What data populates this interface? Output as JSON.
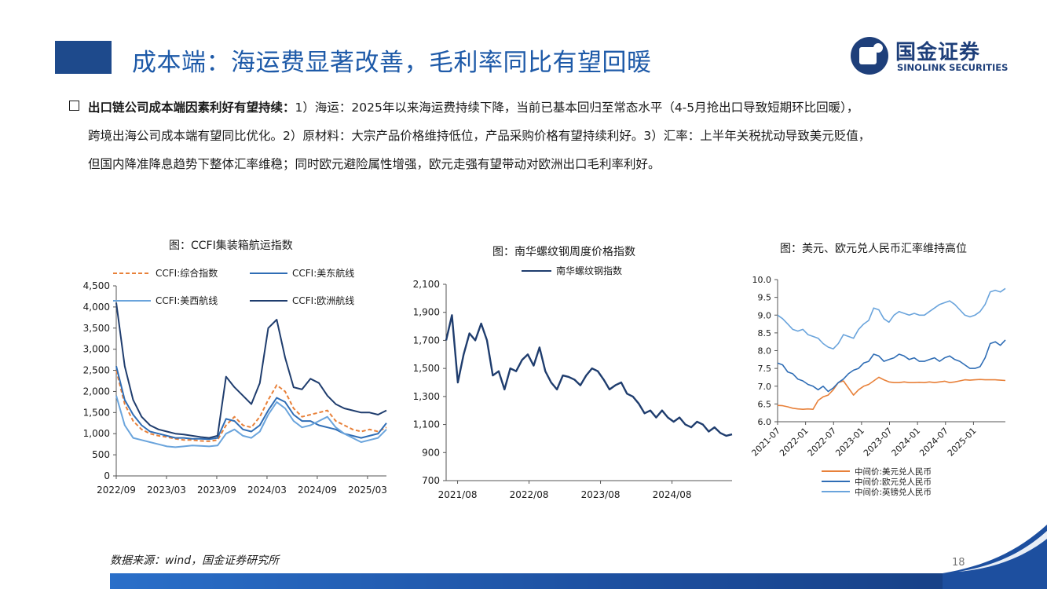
{
  "header": {
    "title": "成本端：海运费显著改善，毛利率同比有望回暖",
    "logo_cn": "国金证券",
    "logo_en": "SINOLINK SECURITIES"
  },
  "body": {
    "lead": "出口链公司成本端因素利好有望持续：",
    "lines": [
      "1）海运：2025年以来海运费持续下降，当前已基本回归至常态水平（4-5月抢出口导致短期环比回暖），",
      "跨境出海公司成本端有望同比优化。2）原材料：大宗产品价格维持低位，产品采购价格有望持续利好。3）汇率：上半年关税扰动导致美元贬值，",
      "但国内降准降息趋势下整体汇率维稳；同时欧元避险属性增强，欧元走强有望带动对欧洲出口毛利率利好。"
    ]
  },
  "colors": {
    "title_blue": "#1e5aa8",
    "logo_navy": "#1e3f7a",
    "orange": "#e8813a",
    "mid_blue": "#2f6db5",
    "light_blue": "#6aa4dc",
    "navy": "#1f3d6e"
  },
  "chart_data": [
    {
      "type": "line",
      "title": "图：CCFI集装箱航运指数",
      "x_ticks": [
        "2022/09",
        "2023/03",
        "2023/09",
        "2024/03",
        "2024/09",
        "2025/03"
      ],
      "x": [
        0,
        1,
        2,
        3,
        4,
        5,
        6,
        7,
        8,
        9,
        10,
        11,
        12,
        13,
        14,
        15,
        16,
        17,
        18,
        19,
        20,
        21,
        22,
        23,
        24,
        25,
        26,
        27,
        28,
        29,
        30,
        31,
        32
      ],
      "ylim": [
        0,
        4500
      ],
      "y_ticks": [
        0,
        500,
        1000,
        1500,
        2000,
        2500,
        3000,
        3500,
        4000,
        4500
      ],
      "legend_placement": "top",
      "series": [
        {
          "name": "CCFI:综合指数",
          "style": "dashed",
          "color": "#e8813a",
          "values": [
            2500,
            1700,
            1300,
            1100,
            1000,
            950,
            920,
            880,
            850,
            850,
            830,
            820,
            850,
            1200,
            1400,
            1200,
            1150,
            1400,
            1800,
            2150,
            2000,
            1600,
            1400,
            1450,
            1500,
            1550,
            1300,
            1200,
            1100,
            1050,
            1100,
            1050,
            1150
          ]
        },
        {
          "name": "CCFI:美东航线",
          "style": "solid",
          "color": "#2f6db5",
          "values": [
            2600,
            1800,
            1450,
            1200,
            1050,
            1000,
            950,
            900,
            900,
            880,
            880,
            870,
            900,
            1350,
            1300,
            1100,
            1050,
            1200,
            1550,
            1850,
            1750,
            1450,
            1300,
            1300,
            1200,
            1150,
            1100,
            1000,
            950,
            900,
            950,
            1000,
            1250
          ]
        },
        {
          "name": "CCFI:美西航线",
          "style": "solid",
          "color": "#6aa4dc",
          "values": [
            1900,
            1200,
            900,
            850,
            800,
            750,
            700,
            680,
            700,
            720,
            710,
            700,
            720,
            1000,
            1100,
            950,
            900,
            1050,
            1450,
            1750,
            1600,
            1300,
            1150,
            1200,
            1300,
            1400,
            1150,
            1000,
            900,
            800,
            850,
            900,
            1100
          ]
        },
        {
          "name": "CCFI:欧洲航线",
          "style": "solid",
          "color": "#1f3d6e",
          "values": [
            4100,
            2600,
            1800,
            1400,
            1200,
            1100,
            1050,
            1000,
            980,
            950,
            920,
            900,
            950,
            2350,
            2100,
            1900,
            1700,
            2200,
            3500,
            3700,
            2800,
            2100,
            2050,
            2300,
            2200,
            1900,
            1700,
            1600,
            1550,
            1500,
            1500,
            1450,
            1550
          ]
        }
      ]
    },
    {
      "type": "line",
      "title": "图：南华螺纹钢周度价格指数",
      "x_ticks": [
        "2021/08",
        "2022/08",
        "2023/08",
        "2024/08"
      ],
      "x": [
        0,
        1,
        2,
        3,
        4,
        5,
        6,
        7,
        8,
        9,
        10,
        11,
        12,
        13,
        14,
        15,
        16,
        17,
        18,
        19,
        20,
        21,
        22,
        23,
        24,
        25,
        26,
        27,
        28,
        29,
        30,
        31,
        32,
        33,
        34,
        35,
        36,
        37,
        38,
        39,
        40,
        41,
        42,
        43,
        44,
        45,
        46,
        47,
        48,
        49
      ],
      "ylim": [
        700,
        2100
      ],
      "y_ticks": [
        700,
        900,
        1100,
        1300,
        1500,
        1700,
        1900,
        2100
      ],
      "legend_placement": "top",
      "series": [
        {
          "name": "南华螺纹钢指数",
          "color": "#1f3d6e",
          "values": [
            1700,
            1880,
            1400,
            1600,
            1750,
            1700,
            1820,
            1700,
            1450,
            1480,
            1350,
            1500,
            1480,
            1560,
            1600,
            1520,
            1650,
            1480,
            1400,
            1350,
            1450,
            1440,
            1420,
            1380,
            1450,
            1500,
            1480,
            1420,
            1350,
            1380,
            1400,
            1320,
            1300,
            1250,
            1180,
            1200,
            1150,
            1200,
            1150,
            1120,
            1150,
            1100,
            1080,
            1120,
            1100,
            1050,
            1080,
            1040,
            1020,
            1030
          ]
        }
      ]
    },
    {
      "type": "line",
      "title": "图：美元、欧元兑人民币汇率维持高位",
      "x_ticks": [
        "2021-07",
        "2022-01",
        "2022-07",
        "2023-01",
        "2023-07",
        "2024-01",
        "2024-07",
        "2025-01"
      ],
      "x": [
        0,
        1,
        2,
        3,
        4,
        5,
        6,
        7,
        8,
        9,
        10,
        11,
        12,
        13,
        14,
        15,
        16,
        17,
        18,
        19,
        20,
        21,
        22,
        23,
        24,
        25,
        26,
        27,
        28,
        29,
        30,
        31,
        32,
        33,
        34,
        35,
        36,
        37,
        38,
        39,
        40,
        41,
        42,
        43,
        44,
        45
      ],
      "ylim": [
        6.0,
        10.0
      ],
      "y_ticks": [
        6.0,
        6.5,
        7.0,
        7.5,
        8.0,
        8.5,
        9.0,
        9.5,
        10.0
      ],
      "legend_placement": "bottom",
      "series": [
        {
          "name": "中间价:美元兑人民币",
          "color": "#e8813a",
          "values": [
            6.46,
            6.45,
            6.42,
            6.38,
            6.36,
            6.35,
            6.36,
            6.35,
            6.6,
            6.7,
            6.75,
            6.9,
            7.1,
            7.15,
            6.95,
            6.75,
            6.9,
            7.0,
            7.05,
            7.15,
            7.25,
            7.18,
            7.12,
            7.1,
            7.1,
            7.12,
            7.1,
            7.1,
            7.11,
            7.1,
            7.12,
            7.1,
            7.12,
            7.14,
            7.1,
            7.12,
            7.15,
            7.18,
            7.17,
            7.18,
            7.19,
            7.18,
            7.18,
            7.18,
            7.17,
            7.16
          ]
        },
        {
          "name": "中间价:欧元兑人民币",
          "color": "#2f6db5",
          "values": [
            7.65,
            7.6,
            7.4,
            7.35,
            7.2,
            7.15,
            7.05,
            7.0,
            6.9,
            7.0,
            6.85,
            6.95,
            7.1,
            7.2,
            7.35,
            7.45,
            7.5,
            7.65,
            7.7,
            7.9,
            7.85,
            7.7,
            7.75,
            7.8,
            7.9,
            7.85,
            7.75,
            7.8,
            7.7,
            7.7,
            7.75,
            7.8,
            7.7,
            7.8,
            7.85,
            7.75,
            7.7,
            7.6,
            7.5,
            7.5,
            7.55,
            7.8,
            8.2,
            8.25,
            8.15,
            8.3
          ]
        },
        {
          "name": "中间价:英镑兑人民币",
          "color": "#6aa4dc",
          "values": [
            9.0,
            8.9,
            8.75,
            8.6,
            8.55,
            8.6,
            8.45,
            8.4,
            8.35,
            8.2,
            8.1,
            8.05,
            8.2,
            8.45,
            8.4,
            8.35,
            8.6,
            8.75,
            8.85,
            9.2,
            9.15,
            8.9,
            8.8,
            9.0,
            9.1,
            9.05,
            9.0,
            9.05,
            9.0,
            9.0,
            9.1,
            9.2,
            9.3,
            9.35,
            9.4,
            9.3,
            9.15,
            9.0,
            8.95,
            9.0,
            9.1,
            9.3,
            9.65,
            9.7,
            9.65,
            9.75
          ]
        }
      ]
    }
  ],
  "footer": {
    "source": "数据来源：wind，国金证券研究所",
    "page": "18"
  }
}
